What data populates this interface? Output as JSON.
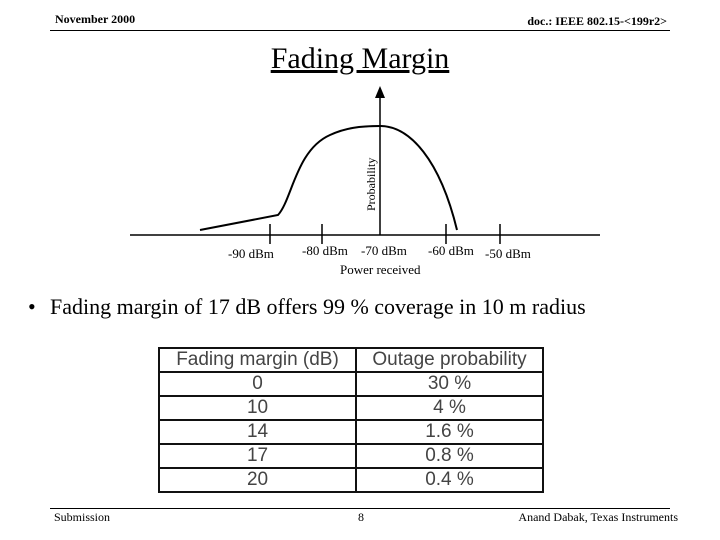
{
  "header": {
    "date": "November 2000",
    "doc_id": "doc.: IEEE 802.15-<199r2>"
  },
  "title": "Fading Margin",
  "diagram": {
    "y_axis_label": "Probability",
    "x_axis_label": "Power received",
    "tick_labels": [
      "-90 dBm",
      "-80 dBm",
      "-70 dBm",
      "-60 dBm",
      "-50 dBm"
    ]
  },
  "bullet": "Fading margin of 17 dB offers 99 % coverage in 10 m radius",
  "table": {
    "headers": [
      "Fading margin (dB)",
      "Outage probability"
    ],
    "rows": [
      [
        "0",
        "30 %"
      ],
      [
        "10",
        "4 %"
      ],
      [
        "14",
        "1.6 %"
      ],
      [
        "17",
        "0.8 %"
      ],
      [
        "20",
        "0.4 %"
      ]
    ]
  },
  "footer": {
    "left": "Submission",
    "page": "8",
    "right": "Anand Dabak, Texas Instruments"
  }
}
